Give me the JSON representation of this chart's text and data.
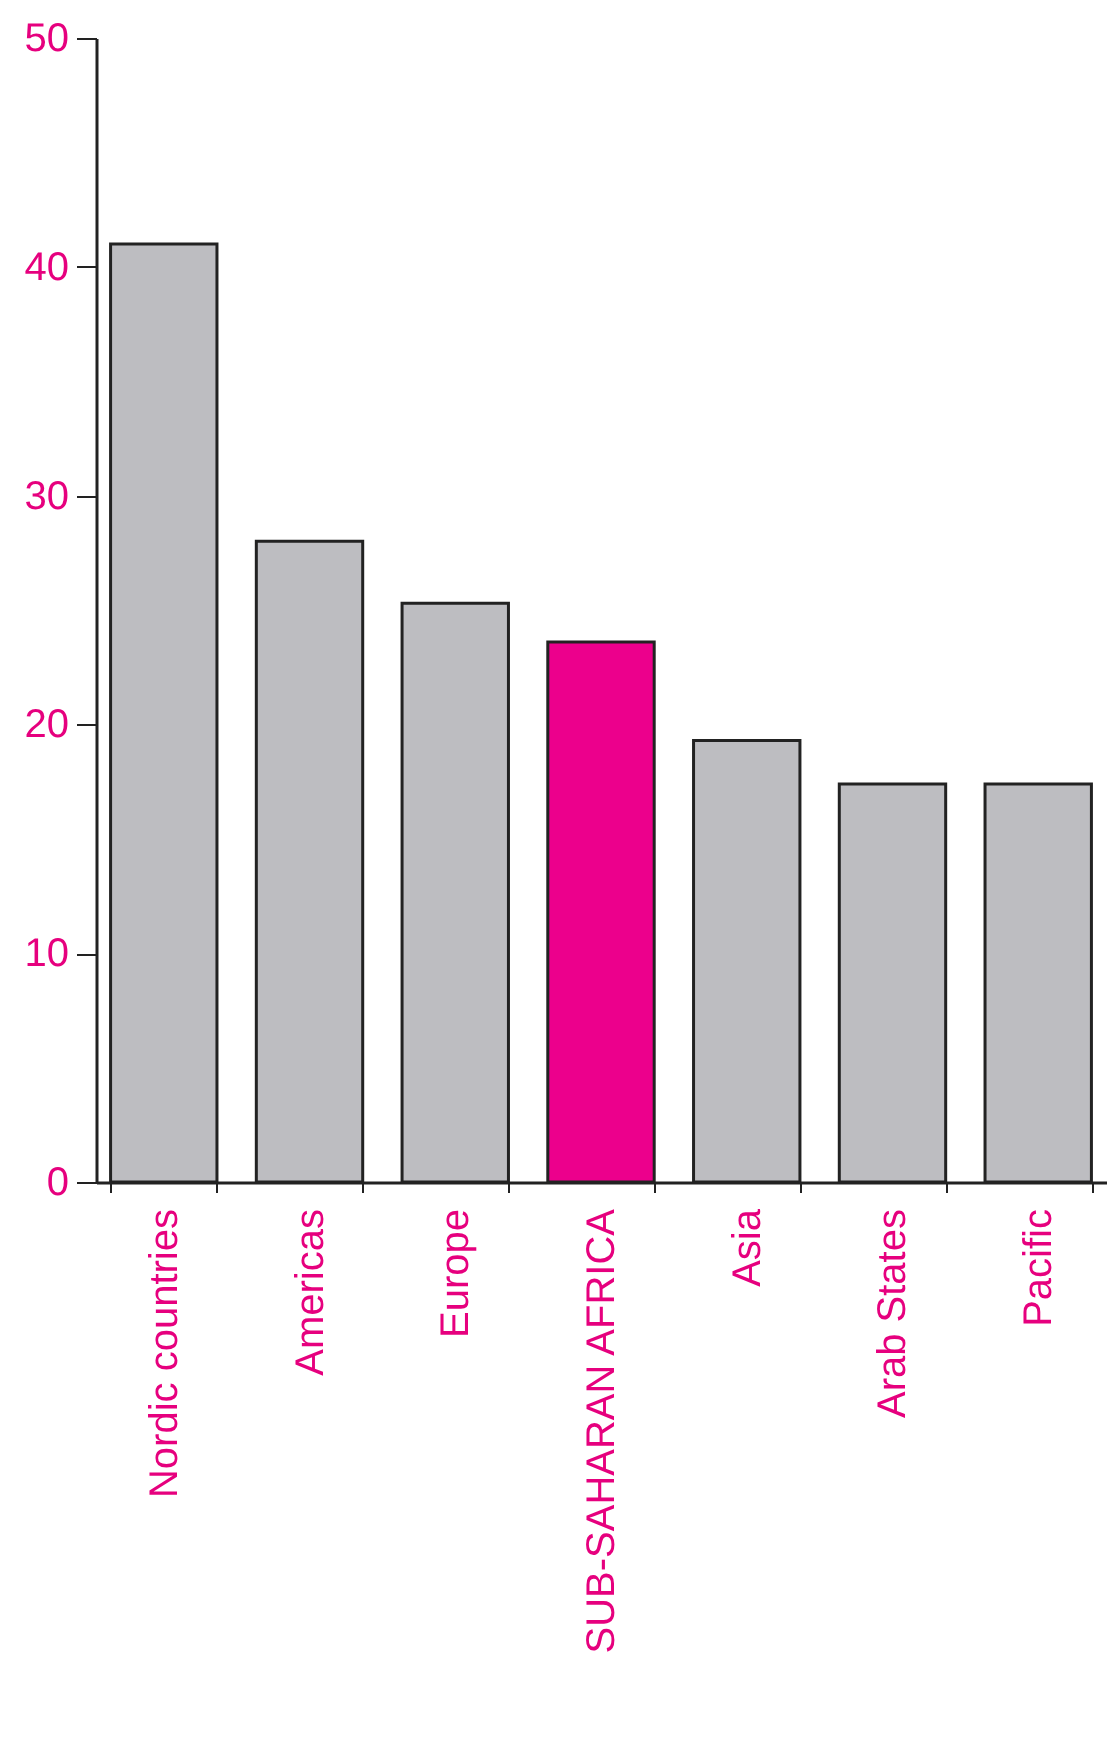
{
  "chart_data": {
    "type": "bar",
    "categories": [
      "Nordic countries",
      "Americas",
      "Europe",
      "SUB-SAHARAN AFRICA",
      "Asia",
      "Arab States",
      "Pacific"
    ],
    "values": [
      41,
      28,
      25.3,
      23.6,
      19.3,
      17.4,
      17.4
    ],
    "colors": [
      "#bdbdc1",
      "#bdbdc1",
      "#bdbdc1",
      "#ec008c",
      "#bdbdc1",
      "#bdbdc1",
      "#bdbdc1"
    ],
    "ylim": [
      0,
      50
    ],
    "yticks": [
      0,
      10,
      20,
      30,
      40,
      50
    ]
  }
}
